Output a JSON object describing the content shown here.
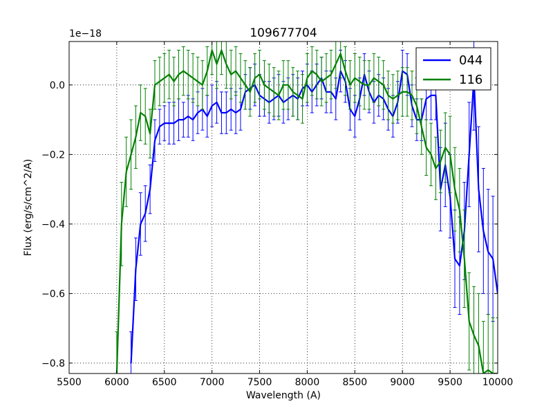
{
  "chart_data": {
    "type": "line",
    "title": "109677704",
    "xlabel": "Wavelength (A)",
    "ylabel": "Flux (erg/s/cm^2/A)",
    "offset_text": "1e−18",
    "xlim": [
      5500,
      10000
    ],
    "ylim": [
      -0.83,
      0.125
    ],
    "xticks": [
      5500,
      6000,
      6500,
      7000,
      7500,
      8000,
      8500,
      9000,
      9500,
      10000
    ],
    "yticks": [
      0.0,
      -0.2,
      -0.4,
      -0.6,
      -0.8
    ],
    "ytick_labels": [
      "0.0",
      "−0.2",
      "−0.4",
      "−0.6",
      "−0.8"
    ],
    "grid": true,
    "legend_position": "top-right",
    "series": [
      {
        "name": "044",
        "color": "#0000ff",
        "x": [
          6150,
          6200,
          6250,
          6300,
          6350,
          6400,
          6450,
          6500,
          6550,
          6600,
          6650,
          6700,
          6750,
          6800,
          6850,
          6900,
          6950,
          7000,
          7050,
          7100,
          7150,
          7200,
          7250,
          7300,
          7350,
          7400,
          7450,
          7500,
          7550,
          7600,
          7650,
          7700,
          7750,
          7800,
          7850,
          7900,
          7950,
          8000,
          8050,
          8100,
          8150,
          8200,
          8250,
          8300,
          8350,
          8400,
          8450,
          8500,
          8550,
          8600,
          8650,
          8700,
          8750,
          8800,
          8850,
          8900,
          8950,
          9000,
          9050,
          9100,
          9150,
          9200,
          9250,
          9300,
          9350,
          9400,
          9450,
          9500,
          9550,
          9600,
          9650,
          9700,
          9750,
          9800,
          9850,
          9900,
          9950,
          10000
        ],
        "y": [
          -0.8,
          -0.53,
          -0.4,
          -0.37,
          -0.3,
          -0.16,
          -0.12,
          -0.11,
          -0.11,
          -0.11,
          -0.1,
          -0.1,
          -0.09,
          -0.1,
          -0.08,
          -0.07,
          -0.09,
          -0.06,
          -0.05,
          -0.08,
          -0.08,
          -0.07,
          -0.08,
          -0.07,
          -0.02,
          -0.01,
          0.0,
          -0.03,
          -0.04,
          -0.05,
          -0.04,
          -0.03,
          -0.05,
          -0.04,
          -0.03,
          -0.04,
          -0.01,
          0.0,
          -0.02,
          0.0,
          0.02,
          -0.02,
          -0.02,
          -0.04,
          0.04,
          0.01,
          -0.07,
          -0.09,
          -0.04,
          0.03,
          -0.02,
          -0.05,
          -0.03,
          -0.04,
          -0.07,
          -0.09,
          -0.05,
          0.04,
          0.03,
          -0.06,
          -0.1,
          -0.1,
          -0.04,
          -0.03,
          -0.03,
          -0.3,
          -0.23,
          -0.32,
          -0.5,
          -0.52,
          -0.42,
          -0.2,
          0.02,
          -0.3,
          -0.42,
          -0.48,
          -0.5,
          -0.6
        ],
        "yerr": [
          0.09,
          0.09,
          0.09,
          0.08,
          0.07,
          0.06,
          0.05,
          0.05,
          0.06,
          0.06,
          0.06,
          0.05,
          0.06,
          0.06,
          0.06,
          0.06,
          0.06,
          0.06,
          0.06,
          0.06,
          0.06,
          0.06,
          0.06,
          0.06,
          0.05,
          0.06,
          0.06,
          0.06,
          0.05,
          0.06,
          0.06,
          0.06,
          0.06,
          0.06,
          0.06,
          0.06,
          0.05,
          0.06,
          0.06,
          0.06,
          0.06,
          0.06,
          0.06,
          0.06,
          0.06,
          0.06,
          0.06,
          0.06,
          0.06,
          0.06,
          0.06,
          0.06,
          0.06,
          0.06,
          0.06,
          0.06,
          0.06,
          0.06,
          0.06,
          0.06,
          0.06,
          0.06,
          0.06,
          0.07,
          0.07,
          0.12,
          0.12,
          0.12,
          0.14,
          0.14,
          0.14,
          0.15,
          0.15,
          0.18,
          0.18,
          0.18,
          0.18,
          0.2
        ]
      },
      {
        "name": "116",
        "color": "#008000",
        "x": [
          6000,
          6050,
          6100,
          6150,
          6200,
          6250,
          6300,
          6350,
          6400,
          6450,
          6500,
          6550,
          6600,
          6650,
          6700,
          6750,
          6800,
          6850,
          6900,
          6950,
          7000,
          7050,
          7100,
          7150,
          7200,
          7250,
          7300,
          7350,
          7400,
          7450,
          7500,
          7550,
          7600,
          7650,
          7700,
          7750,
          7800,
          7850,
          7900,
          7950,
          8000,
          8050,
          8100,
          8150,
          8200,
          8250,
          8300,
          8350,
          8400,
          8450,
          8500,
          8550,
          8600,
          8650,
          8700,
          8750,
          8800,
          8850,
          8900,
          8950,
          9000,
          9050,
          9100,
          9150,
          9200,
          9250,
          9300,
          9350,
          9400,
          9450,
          9500,
          9550,
          9600,
          9650,
          9700,
          9750,
          9800,
          9850,
          9900,
          9950,
          10000
        ],
        "y": [
          -0.83,
          -0.4,
          -0.25,
          -0.2,
          -0.15,
          -0.08,
          -0.09,
          -0.14,
          0.0,
          0.01,
          0.02,
          0.03,
          0.01,
          0.03,
          0.04,
          0.03,
          0.02,
          0.01,
          0.0,
          0.04,
          0.1,
          0.06,
          0.1,
          0.06,
          0.03,
          0.04,
          0.02,
          0.0,
          -0.02,
          0.02,
          0.03,
          0.0,
          -0.01,
          -0.02,
          -0.03,
          0.0,
          0.0,
          -0.02,
          -0.03,
          -0.04,
          0.02,
          0.04,
          0.03,
          0.01,
          0.02,
          0.03,
          0.06,
          0.09,
          0.04,
          0.0,
          0.02,
          0.01,
          0.0,
          0.0,
          0.02,
          0.01,
          0.0,
          -0.03,
          -0.04,
          -0.03,
          -0.02,
          -0.02,
          -0.03,
          -0.06,
          -0.12,
          -0.18,
          -0.2,
          -0.24,
          -0.22,
          -0.18,
          -0.2,
          -0.3,
          -0.36,
          -0.5,
          -0.68,
          -0.72,
          -0.75,
          -0.83,
          -0.82,
          -0.83,
          -0.83
        ],
        "yerr": [
          0.12,
          0.12,
          0.1,
          0.1,
          0.09,
          0.08,
          0.08,
          0.07,
          0.07,
          0.07,
          0.07,
          0.07,
          0.07,
          0.07,
          0.07,
          0.07,
          0.07,
          0.07,
          0.07,
          0.07,
          0.07,
          0.07,
          0.07,
          0.07,
          0.07,
          0.07,
          0.07,
          0.07,
          0.07,
          0.07,
          0.07,
          0.07,
          0.07,
          0.07,
          0.07,
          0.07,
          0.07,
          0.07,
          0.07,
          0.07,
          0.07,
          0.07,
          0.07,
          0.07,
          0.07,
          0.07,
          0.07,
          0.07,
          0.07,
          0.07,
          0.07,
          0.07,
          0.07,
          0.07,
          0.07,
          0.07,
          0.07,
          0.07,
          0.07,
          0.07,
          0.07,
          0.07,
          0.07,
          0.08,
          0.08,
          0.08,
          0.09,
          0.09,
          0.09,
          0.1,
          0.11,
          0.12,
          0.12,
          0.14,
          0.14,
          0.14,
          0.15,
          0.15,
          0.16,
          0.16,
          0.16
        ]
      }
    ]
  }
}
